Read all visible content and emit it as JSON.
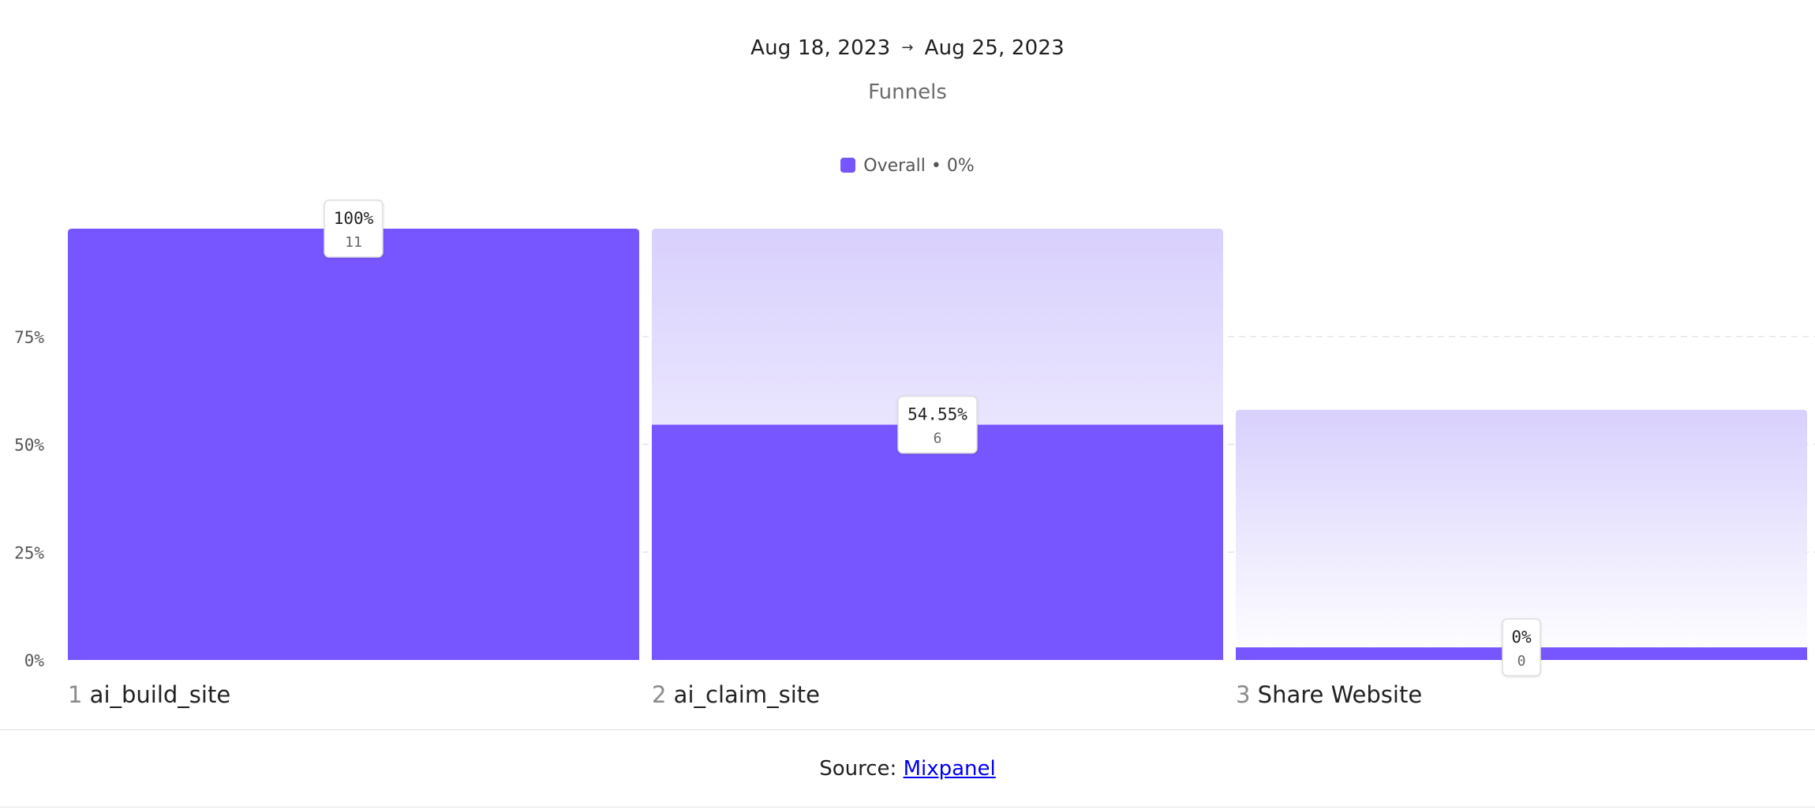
{
  "header": {
    "date_start": "Aug 18, 2023",
    "date_arrow": "→",
    "date_end": "Aug 25, 2023",
    "subtitle": "Funnels"
  },
  "legend": {
    "label": "Overall • 0%",
    "color": "#7856ff"
  },
  "colors": {
    "bar": "#7856ff",
    "ghost_top": "#d8d0fd",
    "ghost_bottom": "#ffffff",
    "grid": "#e6e6e6"
  },
  "chart_data": {
    "type": "bar",
    "categories": [
      "ai_build_site",
      "ai_claim_site",
      "Share Website"
    ],
    "step_numbers": [
      "1",
      "2",
      "3"
    ],
    "values": [
      100,
      54.55,
      0
    ],
    "counts": [
      11,
      6,
      0
    ],
    "value_labels": [
      "100%",
      "54.55%",
      "0%"
    ],
    "count_labels": [
      "11",
      "6",
      "0"
    ],
    "ghost_ceiling": [
      null,
      100,
      58
    ],
    "ylim": [
      0,
      100
    ],
    "yticks": [
      0,
      25,
      50,
      75
    ],
    "ytick_labels": [
      "0%",
      "25%",
      "50%",
      "75%"
    ],
    "grid": true
  },
  "footer": {
    "source_prefix": "Source: ",
    "source_link": "Mixpanel"
  }
}
